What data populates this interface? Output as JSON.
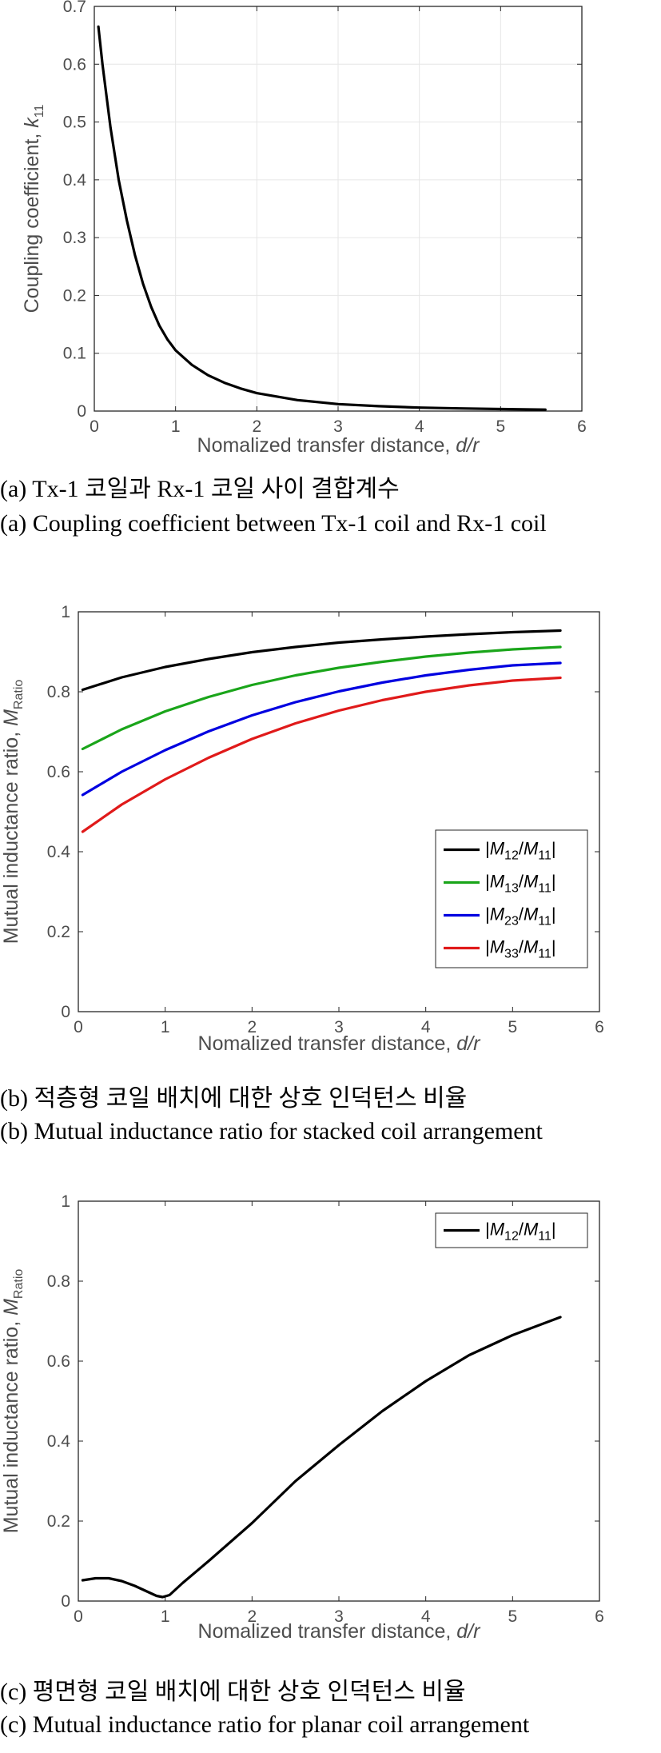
{
  "chart_data": [
    {
      "type": "line",
      "xlabel": "Nomalized transfer distance, d/r",
      "ylabel": "Coupling coefficient, k11",
      "xlim": [
        0,
        6
      ],
      "ylim": [
        0,
        0.7
      ],
      "xticks": [
        "0",
        "1",
        "2",
        "3",
        "4",
        "5",
        "6"
      ],
      "yticks": [
        "0",
        "0.1",
        "0.2",
        "0.3",
        "0.4",
        "0.5",
        "0.6",
        "0.7"
      ],
      "grid": true,
      "legend": null,
      "series": [
        {
          "color": "#000000",
          "x": [
            0.05,
            0.1,
            0.2,
            0.3,
            0.4,
            0.5,
            0.6,
            0.7,
            0.8,
            0.9,
            1.0,
            1.2,
            1.4,
            1.6,
            1.8,
            2.0,
            2.5,
            3.0,
            3.5,
            4.0,
            4.5,
            5.0,
            5.55
          ],
          "values": [
            0.665,
            0.6,
            0.49,
            0.4,
            0.33,
            0.27,
            0.22,
            0.18,
            0.148,
            0.124,
            0.105,
            0.08,
            0.062,
            0.049,
            0.039,
            0.031,
            0.019,
            0.012,
            0.0085,
            0.006,
            0.0045,
            0.0035,
            0.0025
          ]
        }
      ],
      "caption_ko": "(a) Tx-1 코일과 Rx-1 코일 사이 결합계수",
      "caption_en": "(a) Coupling coefficient between Tx-1 coil and Rx-1 coil"
    },
    {
      "type": "line",
      "xlabel": "Nomalized transfer distance, d/r",
      "ylabel": "Mutual inductance ratio, MRatio",
      "xlim": [
        0,
        6
      ],
      "ylim": [
        0,
        1
      ],
      "xticks": [
        "0",
        "1",
        "2",
        "3",
        "4",
        "5",
        "6"
      ],
      "yticks": [
        "0",
        "0.2",
        "0.4",
        "0.6",
        "0.8",
        "1"
      ],
      "grid": false,
      "legend": "right",
      "series": [
        {
          "name": "|M12/M11|",
          "color": "#000000",
          "x": [
            0.05,
            0.5,
            1.0,
            1.5,
            2.0,
            2.5,
            3.0,
            3.5,
            4.0,
            4.5,
            5.0,
            5.55
          ],
          "values": [
            0.805,
            0.836,
            0.862,
            0.882,
            0.899,
            0.912,
            0.923,
            0.931,
            0.938,
            0.944,
            0.949,
            0.953
          ]
        },
        {
          "name": "|M13/M11|",
          "color": "#1aa51a",
          "x": [
            0.05,
            0.5,
            1.0,
            1.5,
            2.0,
            2.5,
            3.0,
            3.5,
            4.0,
            4.5,
            5.0,
            5.55
          ],
          "values": [
            0.657,
            0.706,
            0.751,
            0.787,
            0.817,
            0.841,
            0.86,
            0.875,
            0.888,
            0.898,
            0.906,
            0.912
          ]
        },
        {
          "name": "|M23/M11|",
          "color": "#0000e0",
          "x": [
            0.05,
            0.5,
            1.0,
            1.5,
            2.0,
            2.5,
            3.0,
            3.5,
            4.0,
            4.5,
            5.0,
            5.55
          ],
          "values": [
            0.542,
            0.6,
            0.654,
            0.701,
            0.741,
            0.774,
            0.801,
            0.823,
            0.841,
            0.855,
            0.866,
            0.872
          ]
        },
        {
          "name": "|M33/M11|",
          "color": "#e01a1a",
          "x": [
            0.05,
            0.5,
            1.0,
            1.5,
            2.0,
            2.5,
            3.0,
            3.5,
            4.0,
            4.5,
            5.0,
            5.55
          ],
          "values": [
            0.45,
            0.518,
            0.581,
            0.635,
            0.682,
            0.721,
            0.753,
            0.779,
            0.8,
            0.816,
            0.828,
            0.835
          ]
        }
      ],
      "caption_ko": "(b) 적층형 코일 배치에 대한 상호 인덕턴스 비율",
      "caption_en": "(b) Mutual inductance ratio for stacked coil arrangement"
    },
    {
      "type": "line",
      "xlabel": "Nomalized transfer distance, d/r",
      "ylabel": "Mutual inductance ratio, MRatio",
      "xlim": [
        0,
        6
      ],
      "ylim": [
        0,
        1
      ],
      "xticks": [
        "0",
        "1",
        "2",
        "3",
        "4",
        "5",
        "6"
      ],
      "yticks": [
        "0",
        "0.2",
        "0.4",
        "0.6",
        "0.8",
        "1"
      ],
      "grid": false,
      "legend": "top-right",
      "series": [
        {
          "name": "|M12/M11|",
          "color": "#000000",
          "x": [
            0.05,
            0.2,
            0.35,
            0.5,
            0.65,
            0.8,
            0.9,
            0.97,
            1.05,
            1.2,
            1.5,
            2.0,
            2.5,
            3.0,
            3.5,
            4.0,
            4.5,
            5.0,
            5.55
          ],
          "values": [
            0.052,
            0.057,
            0.057,
            0.05,
            0.038,
            0.023,
            0.013,
            0.01,
            0.015,
            0.045,
            0.1,
            0.195,
            0.3,
            0.39,
            0.475,
            0.55,
            0.615,
            0.665,
            0.71
          ]
        }
      ],
      "caption_ko": "(c) 평면형 코일 배치에 대한 상호 인덕턴스 비율",
      "caption_en": "(c) Mutual inductance ratio for planar coil arrangement"
    }
  ]
}
